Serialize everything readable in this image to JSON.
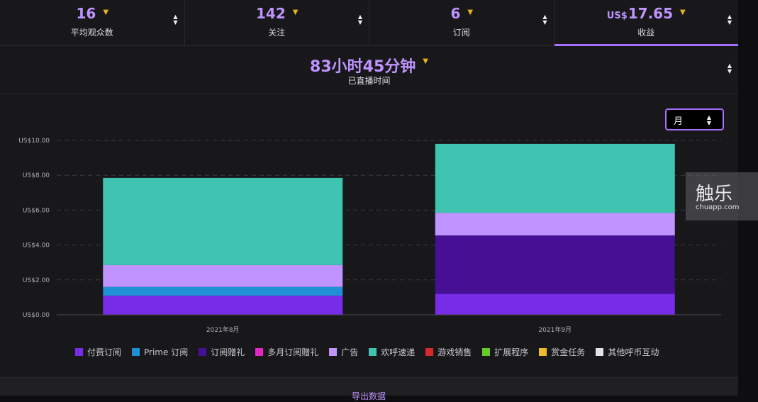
{
  "stats": [
    {
      "currency": "",
      "value": "16",
      "label": "平均观众数",
      "active": false
    },
    {
      "currency": "",
      "value": "142",
      "label": "关注",
      "active": false
    },
    {
      "currency": "",
      "value": "6",
      "label": "订阅",
      "active": false
    },
    {
      "currency": "US$",
      "value": "17.65",
      "label": "收益",
      "active": true
    }
  ],
  "stream_time": {
    "value": "83小时45分钟",
    "label": "已直播时间"
  },
  "period_select": {
    "value": "月"
  },
  "chart_data": {
    "type": "bar",
    "stacked": true,
    "categories": [
      "2021年8月",
      "2021年9月"
    ],
    "yticks": [
      "US$0.00",
      "US$2.00",
      "US$4.00",
      "US$6.00",
      "US$8.00",
      "US$10.00"
    ],
    "ylim": [
      0,
      10
    ],
    "grid": true,
    "legend_position": "bottom",
    "series": [
      {
        "name": "付费订阅",
        "color": "#772ce8",
        "values": [
          1.1,
          1.2
        ]
      },
      {
        "name": "Prime 订阅",
        "color": "#1f8fd6",
        "values": [
          0.5,
          0
        ]
      },
      {
        "name": "订阅赠礼",
        "color": "#451093",
        "values": [
          0,
          3.35
        ]
      },
      {
        "name": "多月订阅赠礼",
        "color": "#e426c4",
        "values": [
          0,
          0
        ]
      },
      {
        "name": "广告",
        "color": "#bf94ff",
        "values": [
          1.25,
          1.3
        ]
      },
      {
        "name": "欢呼速递",
        "color": "#3ec4b0",
        "values": [
          5.0,
          3.95
        ]
      },
      {
        "name": "游戏销售",
        "color": "#d62b2b",
        "values": [
          0,
          0
        ]
      },
      {
        "name": "扩展程序",
        "color": "#6ac72e",
        "values": [
          0,
          0
        ]
      },
      {
        "name": "赏金任务",
        "color": "#f0b92a",
        "values": [
          0,
          0
        ]
      },
      {
        "name": "其他呼币互动",
        "color": "#e3e3e3",
        "values": [
          0,
          0
        ]
      }
    ]
  },
  "footer": {
    "export_label": "导出数据"
  },
  "watermark": {
    "main": "触乐",
    "sub": "chuapp.com"
  }
}
